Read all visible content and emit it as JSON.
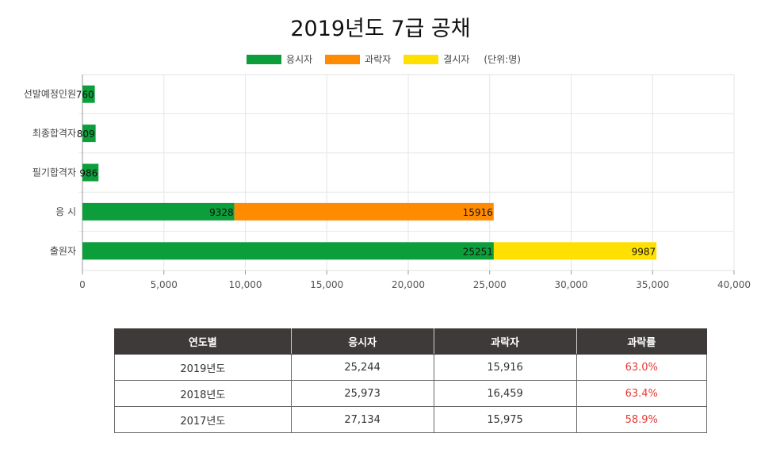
{
  "title": "2019년도 7급 공채",
  "legend": {
    "items": [
      {
        "label": "응시자",
        "color": "#0c9e3a"
      },
      {
        "label": "과락자",
        "color": "#ff8c00"
      },
      {
        "label": "결시자",
        "color": "#ffe000"
      }
    ],
    "unit": "(단위:명)"
  },
  "chart_data": {
    "type": "bar",
    "orientation": "horizontal",
    "stacked": true,
    "categories": [
      "선발예정인원",
      "최종합격자",
      "필기합격자",
      "응  시",
      "출원자"
    ],
    "series": [
      {
        "name": "응시자",
        "color": "#0c9e3a",
        "values": [
          760,
          809,
          986,
          9328,
          25251
        ]
      },
      {
        "name": "과락자",
        "color": "#ff8c00",
        "values": [
          0,
          0,
          0,
          15916,
          0
        ]
      },
      {
        "name": "결시자",
        "color": "#ffe000",
        "values": [
          0,
          0,
          0,
          0,
          9987
        ]
      }
    ],
    "data_labels": [
      [
        "760",
        "",
        ""
      ],
      [
        "809",
        "",
        ""
      ],
      [
        "986",
        "",
        ""
      ],
      [
        "9328",
        "15916",
        ""
      ],
      [
        "25251",
        "",
        "9987"
      ]
    ],
    "xlim": [
      0,
      40000
    ],
    "xticks": [
      0,
      5000,
      10000,
      15000,
      20000,
      25000,
      30000,
      35000,
      40000
    ],
    "xtick_labels": [
      "0",
      "5,000",
      "10,000",
      "15,000",
      "20,000",
      "25,000",
      "30,000",
      "35,000",
      "40,000"
    ],
    "grid": true,
    "legend_position": "top-center"
  },
  "table": {
    "headers": [
      "연도별",
      "응시자",
      "과락자",
      "과락률"
    ],
    "rows": [
      [
        "2019년도",
        "25,244",
        "15,916",
        "63.0%"
      ],
      [
        "2018년도",
        "25,973",
        "16,459",
        "63.4%"
      ],
      [
        "2017년도",
        "27,134",
        "15,975",
        "58.9%"
      ]
    ],
    "rate_color": "#e53935"
  }
}
